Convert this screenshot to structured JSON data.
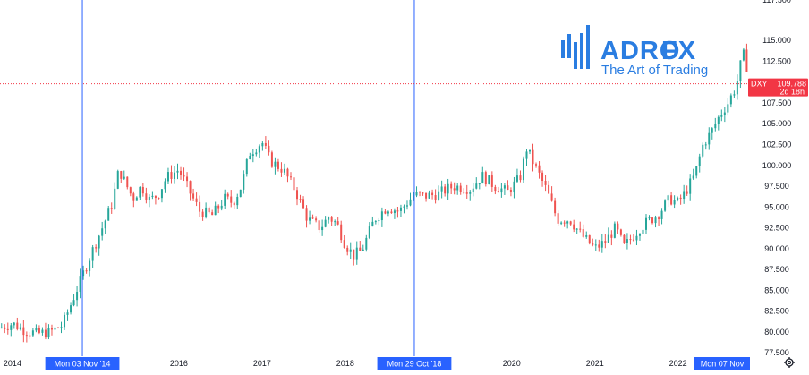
{
  "chart_data": {
    "type": "candlestick",
    "symbol": "DXY",
    "countdown": "2d 18h",
    "last_price_label": "109.788",
    "last_price": 109.788,
    "ylim": [
      76.0,
      117.0
    ],
    "y_ticks": [
      77.5,
      80.0,
      82.5,
      85.0,
      87.5,
      90.0,
      92.5,
      95.0,
      97.5,
      100.0,
      102.5,
      105.0,
      107.5,
      110.0,
      112.5,
      115.0
    ],
    "y_tick_labels": [
      "77.500",
      "80.000",
      "82.500",
      "85.000",
      "87.500",
      "90.000",
      "92.500",
      "95.000",
      "97.500",
      "100.000",
      "102.500",
      "105.000",
      "107.500",
      "110.000",
      "112.500",
      "115.000"
    ],
    "y_top_partial_label": "117.500",
    "x_range": [
      2013.85,
      2022.95
    ],
    "year_ticks": [
      {
        "label": "2014",
        "x": 2014.0
      },
      {
        "label": "2016",
        "x": 2016.0
      },
      {
        "label": "2017",
        "x": 2017.0
      },
      {
        "label": "2018",
        "x": 2018.0
      },
      {
        "label": "2020",
        "x": 2020.0
      },
      {
        "label": "2021",
        "x": 2021.0
      },
      {
        "label": "2022",
        "x": 2022.0
      }
    ],
    "markers": [
      {
        "label": "Mon 03 Nov '14",
        "x": 2014.84
      },
      {
        "label": "Mon 29 Oct '18",
        "x": 2018.83
      },
      {
        "label": "Mon 07 Nov",
        "x": 2022.85
      }
    ],
    "price_path": [
      [
        2013.85,
        80.5
      ],
      [
        2014.0,
        81.0
      ],
      [
        2014.15,
        80.2
      ],
      [
        2014.3,
        79.8
      ],
      [
        2014.45,
        80.0
      ],
      [
        2014.6,
        80.8
      ],
      [
        2014.75,
        84.5
      ],
      [
        2014.85,
        87.0
      ],
      [
        2014.95,
        89.5
      ],
      [
        2015.1,
        93.0
      ],
      [
        2015.2,
        95.5
      ],
      [
        2015.28,
        99.5
      ],
      [
        2015.35,
        98.0
      ],
      [
        2015.45,
        96.0
      ],
      [
        2015.55,
        97.5
      ],
      [
        2015.65,
        95.8
      ],
      [
        2015.75,
        96.5
      ],
      [
        2015.85,
        98.5
      ],
      [
        2016.0,
        99.5
      ],
      [
        2016.12,
        97.0
      ],
      [
        2016.25,
        94.5
      ],
      [
        2016.4,
        94.0
      ],
      [
        2016.55,
        96.0
      ],
      [
        2016.65,
        95.5
      ],
      [
        2016.75,
        97.5
      ],
      [
        2016.85,
        101.5
      ],
      [
        2017.0,
        102.8
      ],
      [
        2017.1,
        100.5
      ],
      [
        2017.25,
        99.5
      ],
      [
        2017.4,
        97.0
      ],
      [
        2017.55,
        93.5
      ],
      [
        2017.7,
        92.5
      ],
      [
        2017.8,
        93.8
      ],
      [
        2017.9,
        93.0
      ],
      [
        2018.0,
        90.5
      ],
      [
        2018.1,
        89.2
      ],
      [
        2018.2,
        89.8
      ],
      [
        2018.35,
        93.5
      ],
      [
        2018.5,
        95.0
      ],
      [
        2018.65,
        94.5
      ],
      [
        2018.83,
        96.5
      ],
      [
        2018.95,
        96.3
      ],
      [
        2019.1,
        96.5
      ],
      [
        2019.3,
        97.5
      ],
      [
        2019.5,
        97.2
      ],
      [
        2019.65,
        98.7
      ],
      [
        2019.8,
        97.5
      ],
      [
        2019.95,
        96.8
      ],
      [
        2020.1,
        98.5
      ],
      [
        2020.18,
        102.0
      ],
      [
        2020.3,
        99.5
      ],
      [
        2020.42,
        97.0
      ],
      [
        2020.55,
        93.5
      ],
      [
        2020.7,
        93.5
      ],
      [
        2020.85,
        91.5
      ],
      [
        2021.0,
        90.0
      ],
      [
        2021.12,
        90.8
      ],
      [
        2021.25,
        92.5
      ],
      [
        2021.35,
        90.2
      ],
      [
        2021.5,
        92.0
      ],
      [
        2021.6,
        93.0
      ],
      [
        2021.75,
        94.0
      ],
      [
        2021.9,
        96.0
      ],
      [
        2022.0,
        95.5
      ],
      [
        2022.1,
        97.0
      ],
      [
        2022.2,
        98.8
      ],
      [
        2022.3,
        102.5
      ],
      [
        2022.4,
        104.0
      ],
      [
        2022.5,
        106.0
      ],
      [
        2022.6,
        107.5
      ],
      [
        2022.7,
        109.5
      ],
      [
        2022.78,
        113.5
      ],
      [
        2022.85,
        111.0
      ],
      [
        2022.92,
        109.8
      ]
    ]
  },
  "logo": {
    "brand_main": "ADRO",
    "brand_accent": "FX",
    "tagline": "The Art of Trading",
    "brand_color": "#2a7de1"
  },
  "colors": {
    "up": "#26a69a",
    "down": "#ef5350",
    "marker_line": "#2962ff",
    "marker_label_bg": "#2962ff",
    "price_label_bg": "#f23645",
    "text": "#131722"
  }
}
